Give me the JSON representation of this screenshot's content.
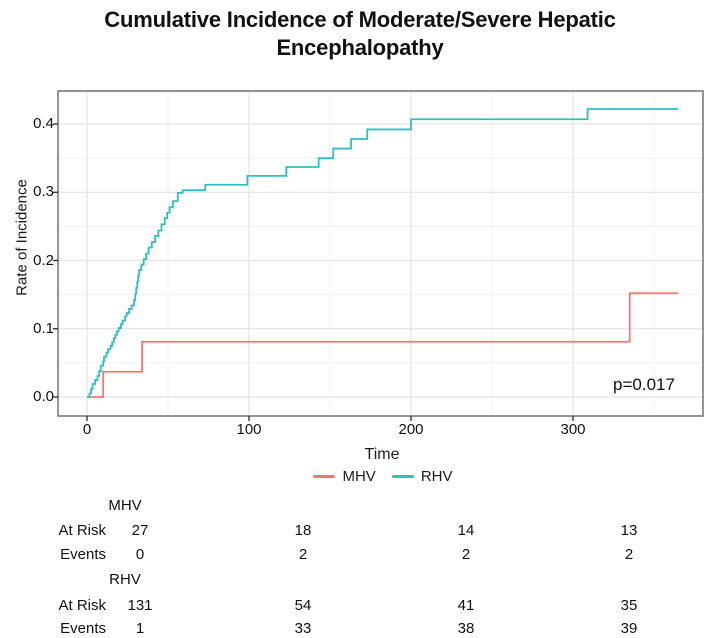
{
  "figure": {
    "title_line1": "Cumulative Incidence of Moderate/Severe Hepatic",
    "title_line2": "Encephalopathy",
    "p_value_label": "p=0.017"
  },
  "chart_data": {
    "type": "line",
    "subtype": "step-cumulative-incidence",
    "title": "Cumulative Incidence of Moderate/Severe Hepatic Encephalopathy",
    "xlabel": "Time",
    "ylabel": "Rate of Incidence",
    "xlim": [
      -18,
      380
    ],
    "ylim": [
      -0.028,
      0.448
    ],
    "x_ticks": [
      0,
      100,
      200,
      300
    ],
    "x_tick_labels": [
      "0",
      "100",
      "200",
      "300"
    ],
    "y_ticks": [
      0.0,
      0.1,
      0.2,
      0.3,
      0.4
    ],
    "y_tick_labels": [
      "0.0",
      "0.1",
      "0.2",
      "0.3",
      "0.4"
    ],
    "x_minor_ticks": [
      50,
      150,
      250,
      350
    ],
    "y_minor_ticks": [
      0.05,
      0.15,
      0.25,
      0.35,
      0.45
    ],
    "grid": true,
    "legend_position": "bottom",
    "annotation": {
      "text": "p=0.017",
      "x": 343,
      "y": 0.016
    },
    "series": [
      {
        "name": "MHV",
        "color": "#f8766d",
        "end_x": 365,
        "steps": [
          [
            0,
            0
          ],
          [
            10,
            0.037
          ],
          [
            34,
            0.081
          ],
          [
            335,
            0.152
          ]
        ]
      },
      {
        "name": "RHV",
        "color": "#2fbfc1",
        "end_x": 365,
        "steps": [
          [
            0,
            0
          ],
          [
            1.5,
            0.005
          ],
          [
            2.5,
            0.012
          ],
          [
            3.5,
            0.019
          ],
          [
            5,
            0.025
          ],
          [
            6.5,
            0.031
          ],
          [
            7.5,
            0.038
          ],
          [
            8.5,
            0.046
          ],
          [
            10,
            0.052
          ],
          [
            10.5,
            0.059
          ],
          [
            12,
            0.065
          ],
          [
            13,
            0.07
          ],
          [
            14.5,
            0.075
          ],
          [
            15.5,
            0.08
          ],
          [
            16.5,
            0.086
          ],
          [
            17.5,
            0.091
          ],
          [
            18.5,
            0.096
          ],
          [
            19.5,
            0.101
          ],
          [
            21,
            0.107
          ],
          [
            22,
            0.112
          ],
          [
            23.5,
            0.118
          ],
          [
            24.5,
            0.123
          ],
          [
            26,
            0.129
          ],
          [
            27.5,
            0.134
          ],
          [
            29,
            0.142
          ],
          [
            29.8,
            0.151
          ],
          [
            30.4,
            0.16
          ],
          [
            31,
            0.169
          ],
          [
            31.6,
            0.178
          ],
          [
            32.2,
            0.186
          ],
          [
            33.5,
            0.194
          ],
          [
            35,
            0.202
          ],
          [
            36.5,
            0.21
          ],
          [
            38,
            0.219
          ],
          [
            40,
            0.227
          ],
          [
            42,
            0.236
          ],
          [
            44,
            0.244
          ],
          [
            46,
            0.253
          ],
          [
            48,
            0.262
          ],
          [
            49.5,
            0.27
          ],
          [
            51,
            0.278
          ],
          [
            53,
            0.287
          ],
          [
            56,
            0.299
          ],
          [
            59,
            0.303
          ],
          [
            73,
            0.311
          ],
          [
            99,
            0.324
          ],
          [
            123,
            0.337
          ],
          [
            143,
            0.35
          ],
          [
            152,
            0.364
          ],
          [
            163,
            0.378
          ],
          [
            173,
            0.392
          ],
          [
            200,
            0.407
          ],
          [
            309,
            0.422
          ]
        ]
      }
    ]
  },
  "risk_table": {
    "groups": [
      {
        "name": "MHV",
        "rows": [
          {
            "label": "At Risk",
            "values": [
              "27",
              "18",
              "14",
              "13"
            ]
          },
          {
            "label": "Events",
            "values": [
              "0",
              "2",
              "2",
              "2"
            ]
          }
        ]
      },
      {
        "name": "RHV",
        "rows": [
          {
            "label": "At Risk",
            "values": [
              "131",
              "54",
              "41",
              "35"
            ]
          },
          {
            "label": "Events",
            "values": [
              "1",
              "33",
              "38",
              "39"
            ]
          }
        ]
      }
    ]
  },
  "style_colors": {
    "grid_major": "#e4e4e4",
    "grid_minor": "#f2f2f2",
    "panel_border": "#7a7a7a",
    "tick": "#2b2b2b"
  }
}
